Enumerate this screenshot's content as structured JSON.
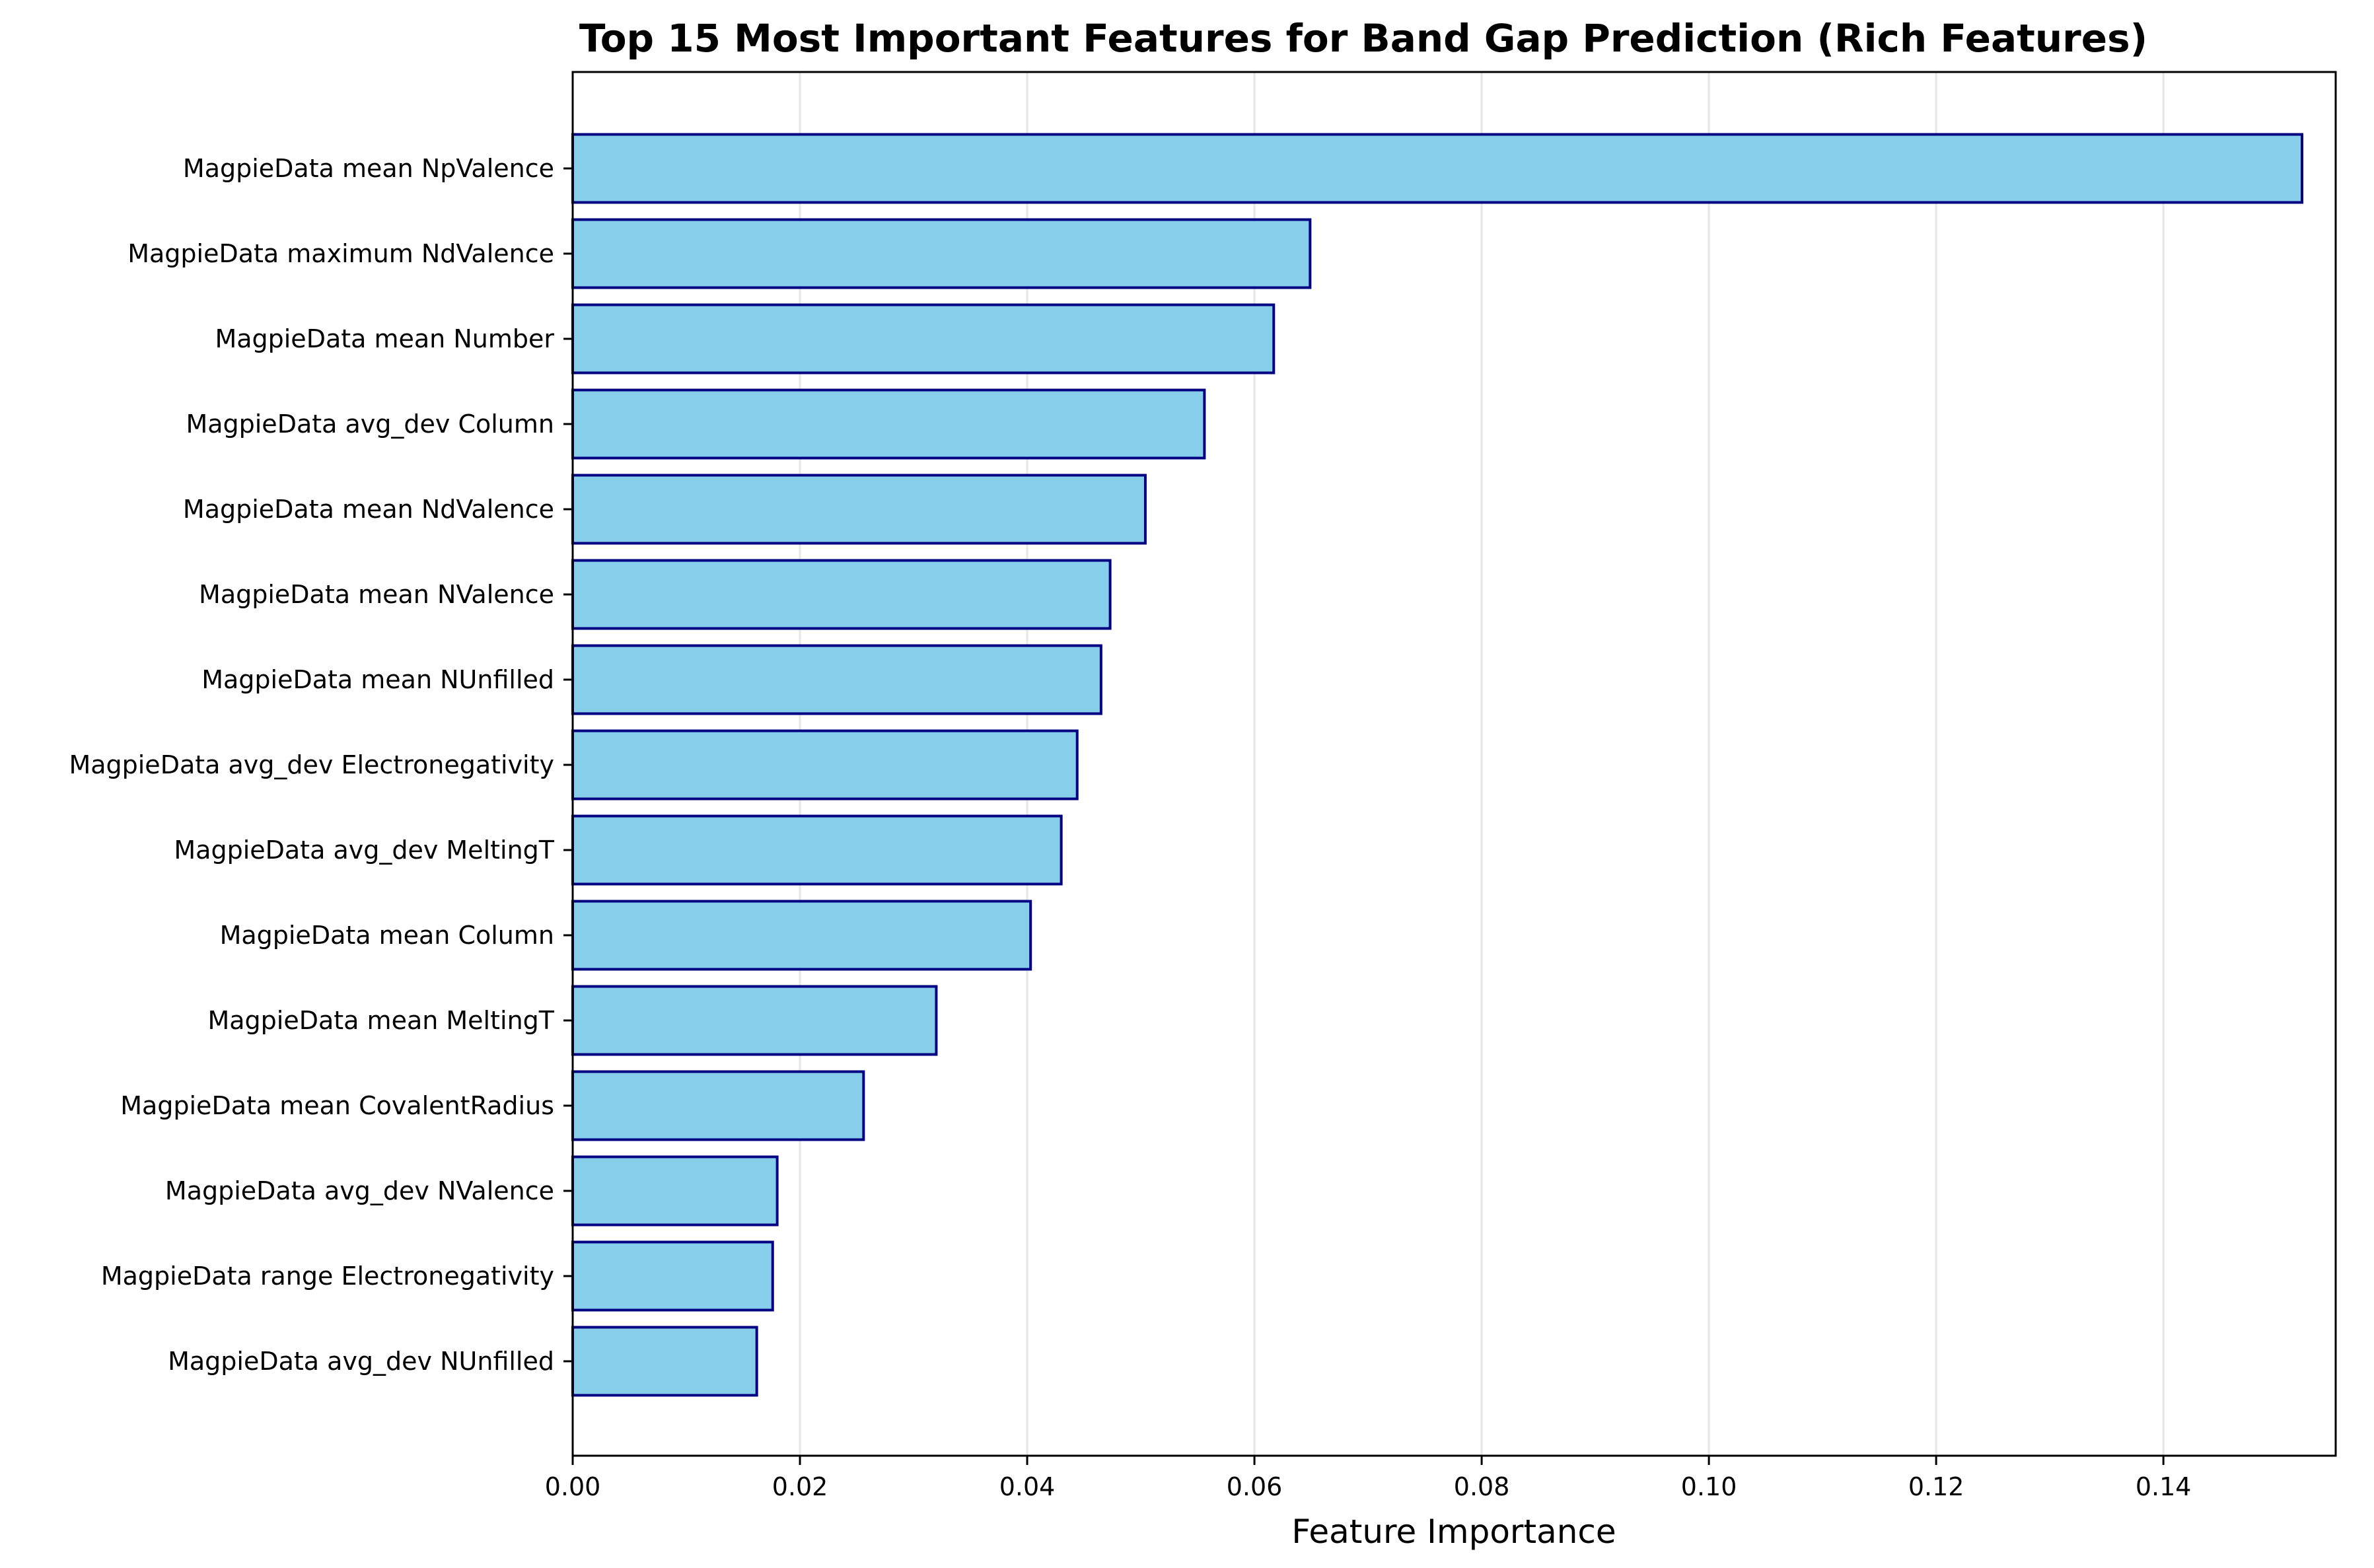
{
  "chart_data": {
    "type": "bar",
    "orientation": "horizontal",
    "title": "Top 15 Most Important Features for Band Gap Prediction (Rich Features)",
    "xlabel": "Feature Importance",
    "ylabel": "",
    "xlim": [
      0,
      0.16
    ],
    "xticks": [
      "0.00",
      "0.02",
      "0.04",
      "0.06",
      "0.08",
      "0.10",
      "0.12",
      "0.14"
    ],
    "grid": "vertical gridlines, light gray",
    "legend": "none",
    "colors": {
      "bar_fill": "#87CEEB",
      "bar_edge": "#000080",
      "grid": "#e6e6e6"
    },
    "categories": [
      "MagpieData mean NpValence",
      "MagpieData maximum NdValence",
      "MagpieData mean Number",
      "MagpieData avg_dev Column",
      "MagpieData mean NdValence",
      "MagpieData mean NValence",
      "MagpieData mean NUnfilled",
      "MagpieData avg_dev Electronegativity",
      "MagpieData avg_dev MeltingT",
      "MagpieData mean Column",
      "MagpieData mean MeltingT",
      "MagpieData mean CovalentRadius",
      "MagpieData avg_dev NValence",
      "MagpieData range Electronegativity",
      "MagpieData avg_dev NUnfilled"
    ],
    "values": [
      0.1522,
      0.0649,
      0.0617,
      0.0556,
      0.0504,
      0.0473,
      0.0465,
      0.0444,
      0.043,
      0.0403,
      0.032,
      0.0256,
      0.018,
      0.0176,
      0.0162
    ]
  }
}
